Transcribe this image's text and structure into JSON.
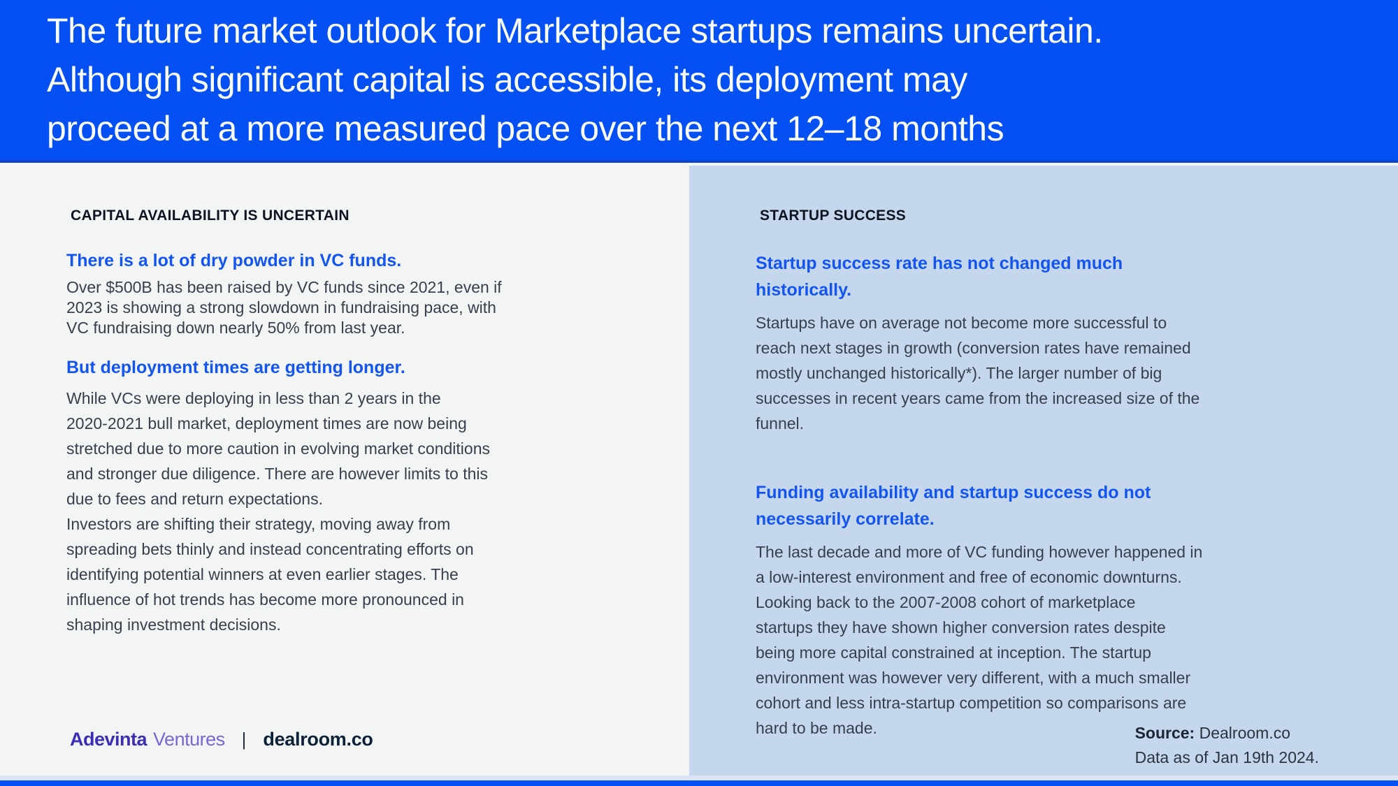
{
  "header": {
    "title": "The future market outlook for Marketplace startups remains uncertain.\nAlthough significant capital is accessible, its deployment may\nproceed at a more measured pace over the next 12–18 months"
  },
  "left_panel": {
    "section_title": "CAPITAL AVAILABILITY IS UNCERTAIN",
    "blocks": [
      {
        "heading": "There is a lot of dry powder in VC funds.",
        "body": "Over $500B has been raised by VC funds since 2021, even if\n2023 is showing a strong slowdown in fundraising pace, with\nVC fundraising down nearly 50% from last year."
      },
      {
        "heading": "But deployment times are getting longer.",
        "body": "While VCs were deploying in less than 2 years in the\n2020-2021 bull market, deployment times are now being\nstretched due to more caution in evolving market conditions\nand stronger due diligence. There are however limits to this\ndue to fees and return expectations.\nInvestors are shifting their strategy, moving away from\nspreading bets thinly and instead concentrating efforts on\nidentifying potential winners at even earlier stages. The\ninfluence of hot trends has become more pronounced in\nshaping investment decisions."
      }
    ],
    "brand": {
      "primary": "Adevinta",
      "secondary": "Ventures",
      "separator": "|",
      "partner": "dealroom.co"
    }
  },
  "right_panel": {
    "section_title": "STARTUP SUCCESS",
    "blocks": [
      {
        "heading": "Startup success rate has not changed much\nhistorically.",
        "body": "Startups have on average not become more successful to\nreach next stages in growth (conversion rates have remained\nmostly unchanged historically*). The larger number of big\nsuccesses in recent years came from the increased size of the\nfunnel."
      },
      {
        "heading": "Funding availability and startup success do not\nnecessarily correlate.",
        "body": "The last decade and more of VC funding however happened in\na low-interest environment and free of economic downturns.\nLooking back to the 2007-2008 cohort of marketplace\nstartups they have shown higher conversion rates despite\nbeing more capital constrained at inception. The startup\nenvironment was however very different, with a much smaller\ncohort and less intra-startup competition so comparisons are\nhard to be made."
      }
    ],
    "source": {
      "label": "Source:",
      "value": "Dealroom.co",
      "note": "Data as of Jan 19th 2024."
    }
  },
  "colors": {
    "header_bg": "#0450f2",
    "accent_blue": "#1355ee",
    "left_panel_bg": "#f2f5f3",
    "right_panel_bg": "#c5d7ec",
    "adevinta_purple": "#3d2db4",
    "dealroom_navy": "#0c2038",
    "footer_bar": "#0551f3"
  }
}
